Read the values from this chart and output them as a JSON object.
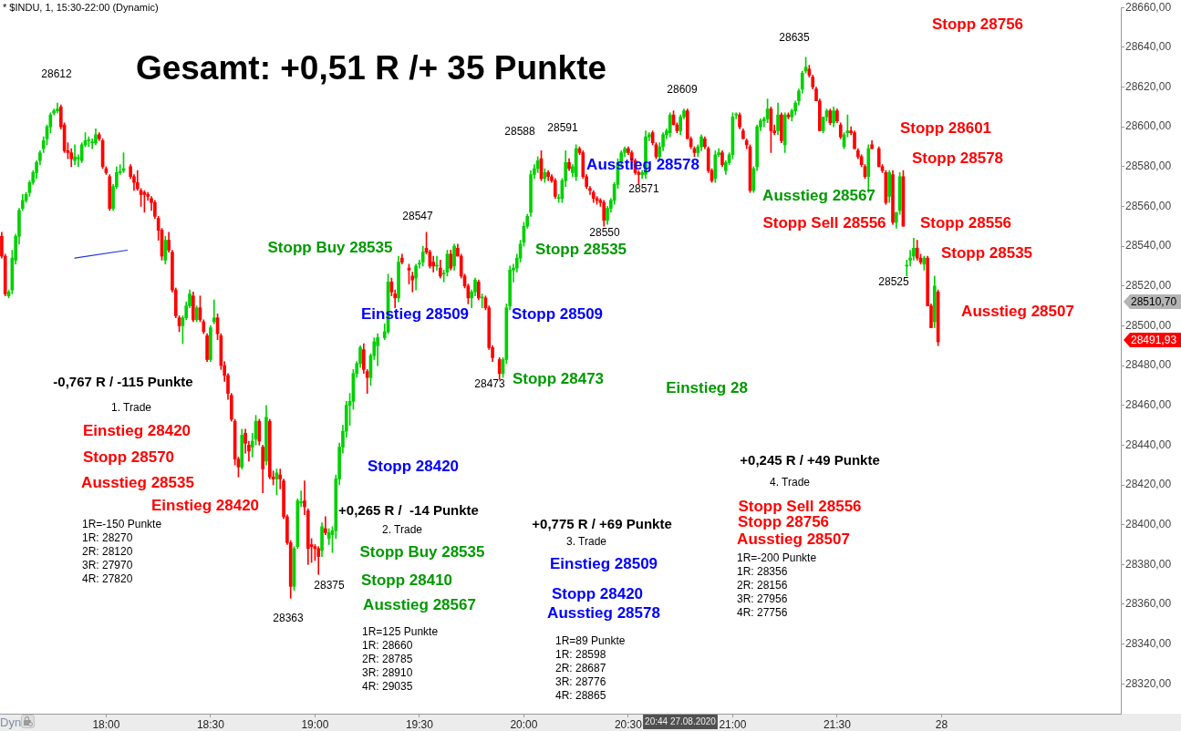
{
  "chart_data": {
    "type": "candlestick",
    "title": "* $INDU, 1, 15:30-22:00 (Dynamic)",
    "subtitle": "Gesamt: +0,51 R /+ 35 Punkte",
    "categories": [
      null,
      null,
      null,
      null,
      null,
      null,
      null,
      null,
      null,
      null,
      null,
      null,
      null,
      null,
      null,
      null,
      null,
      null,
      null,
      null,
      null,
      null,
      null,
      null,
      null,
      null,
      null,
      null,
      null,
      null,
      "18:00",
      null,
      null,
      null,
      null,
      null,
      null,
      null,
      null,
      null,
      null,
      null,
      null,
      null,
      null,
      null,
      null,
      null,
      null,
      null,
      null,
      null,
      null,
      null,
      null,
      null,
      null,
      null,
      null,
      null,
      "18:30",
      null,
      null,
      null,
      null,
      null,
      null,
      null,
      null,
      null,
      null,
      null,
      null,
      null,
      null,
      null,
      null,
      null,
      null,
      null,
      null,
      null,
      null,
      null,
      null,
      null,
      null,
      null,
      null,
      null,
      "19:00",
      null,
      null,
      null,
      null,
      null,
      null,
      null,
      null,
      null,
      null,
      null,
      null,
      null,
      null,
      null,
      null,
      null,
      null,
      null,
      null,
      null,
      null,
      null,
      null,
      null,
      null,
      null,
      null,
      null,
      "19:30",
      null,
      null,
      null,
      null,
      null,
      null,
      null,
      null,
      null,
      null,
      null,
      null,
      null,
      null,
      null,
      null,
      null,
      null,
      null,
      null,
      null,
      null,
      null,
      null,
      null,
      null,
      null,
      null,
      null,
      "20:00",
      null,
      null,
      null,
      null,
      null,
      null,
      null,
      null,
      null,
      null,
      null,
      null,
      null,
      null,
      null,
      null,
      null,
      null,
      null,
      null,
      null,
      null,
      null,
      null,
      null,
      null,
      null,
      null,
      null,
      "20:30",
      null,
      null,
      null,
      null,
      null,
      null,
      null,
      null,
      null,
      null,
      null,
      null,
      null,
      null,
      null,
      null,
      null,
      null,
      null,
      null,
      null,
      null,
      null,
      null,
      null,
      null,
      null,
      null,
      null,
      "21:00",
      null,
      null,
      null,
      null,
      null,
      null,
      null,
      null,
      null,
      null,
      null,
      null,
      null,
      null,
      null,
      null,
      null,
      null,
      null,
      null,
      null,
      null,
      null,
      null,
      null,
      null,
      null,
      null,
      null,
      "21:30",
      null,
      null,
      null,
      null,
      null,
      null,
      null,
      null,
      null,
      null,
      null,
      null,
      null,
      null,
      null,
      null,
      null,
      null,
      null,
      null,
      null,
      null,
      null,
      null,
      null,
      null,
      null,
      null,
      null,
      "28",
      null,
      null,
      null,
      null,
      null,
      null,
      null,
      null,
      null,
      null,
      null,
      null,
      null,
      null,
      null,
      null,
      null,
      null,
      null,
      null,
      null,
      null,
      null,
      null,
      null,
      null,
      null,
      null,
      null,
      null,
      null,
      null,
      null,
      null,
      null,
      null,
      null,
      null,
      null,
      null,
      null,
      null,
      null,
      null,
      null,
      null,
      null,
      null,
      null,
      null,
      null
    ],
    "series": [
      {
        "ohlc": [
          [
            28545,
            28547,
            28534,
            28535
          ],
          [
            28535,
            28536,
            28515,
            28516
          ],
          [
            28515,
            28518,
            28514,
            28517
          ],
          [
            28518,
            28538,
            28516,
            28534
          ],
          [
            28533,
            28546,
            28531,
            28545
          ],
          [
            28545,
            28559,
            28541,
            28558
          ],
          [
            28559,
            28566,
            28558,
            28563
          ],
          [
            28563,
            28567,
            28562,
            28566
          ],
          [
            28567,
            28573,
            28565,
            28572
          ],
          [
            28572,
            28578,
            28571,
            28577
          ],
          [
            28577,
            28583,
            28574,
            28582
          ],
          [
            28583,
            28588,
            28581,
            28587
          ],
          [
            28589,
            28595,
            28587,
            28593
          ],
          [
            28594,
            28601,
            28591,
            28600
          ],
          [
            28600,
            28607,
            28597,
            28606
          ],
          [
            28607,
            28609,
            28606,
            28608
          ],
          [
            28608,
            28612,
            28607,
            28609
          ],
          [
            28610,
            28611,
            28599,
            28600
          ],
          [
            28601,
            28602,
            28587,
            28588
          ],
          [
            28588,
            28592,
            28584,
            28587
          ],
          [
            28587,
            28589,
            28580,
            28584
          ],
          [
            28583,
            28591,
            28581,
            28585
          ],
          [
            28584,
            28586,
            28580,
            28584
          ],
          [
            28583,
            28592,
            28582,
            28591
          ],
          [
            28591,
            28597,
            28590,
            28593
          ],
          [
            28593,
            28595,
            28590,
            28593
          ],
          [
            28592,
            28594,
            28589,
            28592
          ],
          [
            28592,
            28599,
            28591,
            28596
          ],
          [
            28596,
            28597,
            28593,
            28594
          ],
          [
            28593,
            28594,
            28579,
            28580
          ],
          [
            28579,
            28580,
            28576,
            28577
          ],
          [
            28575,
            28576,
            28558,
            28559
          ],
          [
            28559,
            28571,
            28558,
            28570
          ],
          [
            28570,
            28580,
            28569,
            28577
          ],
          [
            28577,
            28581,
            28576,
            28577
          ],
          [
            28578,
            28587,
            28577,
            28579
          ],
          null,
          [
            28580,
            28581,
            28574,
            28575
          ],
          [
            28575,
            28576,
            28568,
            28572
          ],
          [
            28572,
            28578,
            28568,
            28569
          ],
          [
            28568,
            28569,
            28560,
            28566
          ],
          [
            28567,
            28568,
            28557,
            28566
          ],
          [
            28566,
            28567,
            28563,
            28565
          ],
          [
            28564,
            28565,
            28558,
            28562
          ],
          [
            28562,
            28563,
            28554,
            28555
          ],
          [
            28554,
            28555,
            28543,
            28548
          ],
          [
            28548,
            28549,
            28533,
            28535
          ],
          [
            28533,
            28545,
            28531,
            28543
          ],
          [
            28543,
            28547,
            28537,
            28538
          ],
          [
            28537,
            28538,
            28517,
            28518
          ],
          [
            28518,
            28519,
            28504,
            28505
          ],
          [
            28504,
            28505,
            28497,
            28500
          ],
          [
            28500,
            28505,
            28491,
            28504
          ],
          [
            28504,
            28512,
            28503,
            28510
          ],
          [
            28510,
            28518,
            28509,
            28516
          ],
          [
            28515,
            28517,
            28502,
            28503
          ],
          [
            28503,
            28510,
            28502,
            28509
          ],
          [
            28509,
            28515,
            28502,
            28503
          ],
          [
            28502,
            28503,
            28496,
            28497
          ],
          [
            28495,
            28496,
            28482,
            28483
          ],
          [
            28483,
            28500,
            28482,
            28499
          ],
          [
            28502,
            28513,
            28501,
            28504
          ],
          [
            28504,
            28506,
            28493,
            28496
          ],
          [
            28495,
            28496,
            28478,
            28480
          ],
          [
            28480,
            28482,
            28472,
            28475
          ],
          [
            28475,
            28476,
            28463,
            28466
          ],
          [
            28465,
            28466,
            28452,
            28453
          ],
          [
            28452,
            28453,
            28430,
            28433
          ],
          [
            28433,
            28434,
            28424,
            28429
          ],
          [
            28429,
            28448,
            28428,
            28445
          ],
          [
            28446,
            28448,
            28436,
            28441
          ],
          [
            28440,
            28442,
            28432,
            28437
          ],
          [
            28439,
            28446,
            28434,
            28442
          ],
          [
            28443,
            28455,
            28440,
            28452
          ],
          [
            28452,
            28453,
            28440,
            28442
          ],
          [
            28439,
            28440,
            28416,
            28428
          ],
          [
            28432,
            28460,
            28430,
            28454
          ],
          [
            28452,
            28453,
            28423,
            28424
          ],
          [
            28424,
            28427,
            28420,
            28423
          ],
          [
            28423,
            28428,
            28415,
            28426
          ],
          [
            28425,
            28428,
            28418,
            28423
          ],
          [
            28422,
            28423,
            28403,
            28404
          ],
          [
            28404,
            28405,
            28390,
            28391
          ],
          [
            28391,
            28392,
            28363,
            28369
          ],
          [
            28369,
            28389,
            28367,
            28388
          ],
          [
            28389,
            28413,
            28388,
            28412
          ],
          [
            28411,
            28417,
            28409,
            28411
          ],
          [
            28412,
            28422,
            28405,
            28409
          ],
          [
            28407,
            28408,
            28380,
            28388
          ],
          [
            28390,
            28393,
            28381,
            28389
          ],
          [
            28389,
            28390,
            28382,
            28388
          ],
          [
            28388,
            28389,
            28375,
            28384
          ],
          [
            28387,
            28401,
            28384,
            28399
          ],
          [
            28398,
            28404,
            28395,
            28396
          ],
          [
            28393,
            28398,
            28390,
            28396
          ],
          [
            28395,
            28399,
            28386,
            28397
          ],
          [
            28397,
            28425,
            28393,
            28423
          ],
          [
            28423,
            28441,
            28420,
            28439
          ],
          [
            28439,
            28450,
            28436,
            28447
          ],
          [
            28447,
            28462,
            28444,
            28460
          ],
          [
            28460,
            28466,
            28450,
            28462
          ],
          [
            28462,
            28478,
            28458,
            28476
          ],
          [
            28476,
            28482,
            28474,
            28481
          ],
          [
            28481,
            28490,
            28479,
            28489
          ],
          [
            28488,
            28491,
            28476,
            28478
          ],
          [
            28477,
            28478,
            28466,
            28474
          ],
          [
            28474,
            28486,
            28470,
            28485
          ],
          [
            28485,
            28494,
            28483,
            28492
          ],
          [
            28490,
            28496,
            28480,
            28494
          ],
          null,
          [
            28494,
            28501,
            28493,
            28497
          ],
          [
            28497,
            28526,
            28496,
            28522
          ],
          [
            28522,
            28524,
            28515,
            28517
          ],
          [
            28516,
            28518,
            28509,
            28514
          ],
          [
            28514,
            28535,
            28512,
            28532
          ],
          [
            28534,
            28536,
            28531,
            28532
          ],
          null,
          [
            28529,
            28531,
            28521,
            28528
          ],
          [
            28525,
            28527,
            28517,
            28523
          ],
          [
            28524,
            28531,
            28518,
            28530
          ],
          [
            28531,
            28533,
            28529,
            28531
          ],
          [
            28532,
            28540,
            28530,
            28537
          ],
          [
            28539,
            28547,
            28536,
            28537
          ],
          [
            28537,
            28538,
            28529,
            28530
          ],
          [
            28532,
            28535,
            28527,
            28530
          ],
          [
            28530,
            28535,
            28528,
            28530
          ],
          [
            28529,
            28533,
            28524,
            28525
          ],
          [
            28526,
            28528,
            28522,
            28526
          ],
          [
            28527,
            28538,
            28525,
            28536
          ],
          [
            28536,
            28538,
            28528,
            28529
          ],
          [
            28530,
            28541,
            28528,
            28540
          ],
          [
            28539,
            28541,
            28535,
            28535
          ],
          [
            28535,
            28536,
            28524,
            28525
          ],
          [
            28525,
            28526,
            28519,
            28520
          ],
          [
            28520,
            28521,
            28511,
            28514
          ],
          [
            28514,
            28518,
            28509,
            28517
          ],
          [
            28517,
            28524,
            28515,
            28523
          ],
          [
            28522,
            28523,
            28513,
            28514
          ],
          [
            28514,
            28516,
            28509,
            28514
          ],
          [
            28514,
            28515,
            28508,
            28509
          ],
          [
            28509,
            28510,
            28488,
            28489
          ],
          [
            28489,
            28490,
            28482,
            28484
          ],
          null,
          [
            28483,
            28484,
            28473,
            28476
          ],
          [
            28476,
            28484,
            28474,
            28483
          ],
          [
            28483,
            28511,
            28481,
            28509
          ],
          [
            28510,
            28530,
            28508,
            28528
          ],
          [
            28528,
            28531,
            28522,
            28529
          ],
          [
            28529,
            28536,
            28527,
            28534
          ],
          [
            28534,
            28543,
            28532,
            28541
          ],
          [
            28542,
            28552,
            28540,
            28550
          ],
          [
            28550,
            28556,
            28549,
            28555
          ],
          [
            28557,
            28578,
            28555,
            28576
          ],
          [
            28576,
            28581,
            28574,
            28579
          ],
          [
            28579,
            28585,
            28577,
            28583
          ],
          [
            28584,
            28588,
            28573,
            28574
          ],
          [
            28574,
            28579,
            28572,
            28577
          ],
          [
            28577,
            28578,
            28573,
            28575
          ],
          [
            28575,
            28576,
            28572,
            28573
          ],
          [
            28573,
            28574,
            28564,
            28565
          ],
          [
            28564,
            28566,
            28562,
            28564
          ],
          [
            28564,
            28574,
            28562,
            28573
          ],
          [
            28573,
            28588,
            28570,
            28582
          ],
          [
            28582,
            28584,
            28578,
            28579
          ],
          [
            28577,
            28581,
            28575,
            28580
          ],
          [
            28575,
            28591,
            28573,
            28589
          ],
          [
            28589,
            28590,
            28586,
            28587
          ],
          [
            28587,
            28588,
            28574,
            28575
          ],
          [
            28575,
            28576,
            28569,
            28570
          ],
          [
            28569,
            28570,
            28566,
            28568
          ],
          [
            28567,
            28568,
            28562,
            28564
          ],
          [
            28564,
            28565,
            28561,
            28563
          ],
          [
            28563,
            28564,
            28560,
            28562
          ],
          [
            28562,
            28563,
            28550,
            28553
          ],
          [
            28553,
            28560,
            28551,
            28559
          ],
          [
            28559,
            28564,
            28557,
            28563
          ],
          [
            28563,
            28572,
            28561,
            28571
          ],
          [
            28571,
            28584,
            28569,
            28582
          ],
          [
            28582,
            28588,
            28580,
            28587
          ],
          [
            28587,
            28590,
            28585,
            28589
          ],
          [
            28589,
            28590,
            28586,
            28587
          ],
          [
            28587,
            28588,
            28582,
            28583
          ],
          [
            28583,
            28584,
            28576,
            28577
          ],
          [
            28577,
            28578,
            28571,
            28576
          ],
          [
            28576,
            28578,
            28574,
            28577
          ],
          [
            28576,
            28598,
            28574,
            28595
          ],
          [
            28595,
            28597,
            28593,
            28596
          ],
          [
            28597,
            28598,
            28591,
            28592
          ],
          [
            28591,
            28592,
            28584,
            28585
          ],
          [
            28585,
            28592,
            28583,
            28590
          ],
          [
            28590,
            28597,
            28588,
            28596
          ],
          [
            28596,
            28599,
            28594,
            28598
          ],
          [
            28597,
            28607,
            28595,
            28606
          ],
          [
            28606,
            28608,
            28601,
            28601
          ],
          [
            28601,
            28602,
            28597,
            28598
          ],
          [
            28598,
            28606,
            28596,
            28605
          ],
          [
            28605,
            28609,
            28604,
            28608
          ],
          [
            28608,
            28609,
            28594,
            28594
          ],
          [
            28594,
            28595,
            28589,
            28590
          ],
          [
            28589,
            28590,
            28585,
            28587
          ],
          [
            28587,
            28591,
            28585,
            28590
          ],
          [
            28590,
            28596,
            28588,
            28595
          ],
          [
            28594,
            28595,
            28589,
            28590
          ],
          [
            28589,
            28590,
            28577,
            28578
          ],
          [
            28578,
            28579,
            28572,
            28573
          ],
          [
            28574,
            28588,
            28572,
            28586
          ],
          [
            28586,
            28589,
            28585,
            28587
          ],
          [
            28587,
            28588,
            28580,
            28581
          ],
          [
            28578,
            28583,
            28576,
            28582
          ],
          [
            28582,
            28587,
            28581,
            28586
          ],
          [
            28586,
            28607,
            28584,
            28605
          ],
          [
            28606,
            28607,
            28604,
            28606
          ],
          [
            28606,
            28607,
            28599,
            28600
          ],
          [
            28598,
            28599,
            28594,
            28594
          ],
          [
            28593,
            28594,
            28589,
            28591
          ],
          [
            28590,
            28591,
            28567,
            28568
          ],
          [
            28568,
            28580,
            28567,
            28579
          ],
          [
            28580,
            28601,
            28578,
            28600
          ],
          [
            28600,
            28604,
            28598,
            28603
          ],
          [
            28603,
            28605,
            28600,
            28604
          ],
          [
            28604,
            28614,
            28602,
            28609
          ],
          [
            28609,
            28610,
            28587,
            28598
          ],
          [
            28598,
            28601,
            28596,
            28597
          ],
          [
            28598,
            28612,
            28596,
            28606
          ],
          [
            28606,
            28607,
            28592,
            28593
          ],
          [
            28591,
            28607,
            28587,
            28606
          ],
          [
            28606,
            28607,
            28604,
            28605
          ],
          [
            28605,
            28609,
            28603,
            28608
          ],
          [
            28608,
            28613,
            28606,
            28612
          ],
          [
            28613,
            28619,
            28611,
            28618
          ],
          [
            28619,
            28628,
            28617,
            28627
          ],
          [
            28628,
            28635,
            28627,
            28630
          ],
          [
            28629,
            28631,
            28625,
            28626
          ],
          [
            28625,
            28626,
            28619,
            28620
          ],
          [
            28619,
            28620,
            28613,
            28613
          ],
          [
            28613,
            28614,
            28598,
            28598
          ],
          [
            28598,
            28605,
            28597,
            28605
          ],
          [
            28605,
            28609,
            28603,
            28608
          ],
          [
            28608,
            28609,
            28601,
            28602
          ],
          [
            28602,
            28610,
            28600,
            28608
          ],
          [
            28608,
            28609,
            28602,
            28603
          ],
          [
            28601,
            28602,
            28594,
            28595
          ],
          [
            28590,
            28597,
            28589,
            28596
          ],
          [
            28597,
            28606,
            28595,
            28598
          ],
          [
            28598,
            28600,
            28596,
            28597
          ],
          [
            28597,
            28598,
            28589,
            28589
          ],
          [
            28588,
            28589,
            28584,
            28585
          ],
          [
            28585,
            28586,
            28580,
            28581
          ],
          [
            28580,
            28581,
            28574,
            28575
          ],
          [
            28575,
            28591,
            28567,
            28589
          ],
          [
            28591,
            28593,
            28589,
            28589
          ],
          null,
          [
            28589,
            28590,
            28580,
            28580
          ],
          [
            28580,
            28581,
            28577,
            28578
          ],
          [
            28577,
            28578,
            28561,
            28562
          ],
          [
            28565,
            28578,
            28562,
            28577
          ],
          [
            28576,
            28578,
            28551,
            28552
          ],
          [
            28552,
            28557,
            28549,
            28557
          ],
          [
            28558,
            28577,
            28556,
            28575
          ],
          [
            28575,
            28578,
            28550,
            28550
          ],
          [
            28530,
            28533,
            28525,
            28530
          ],
          [
            28533,
            28538,
            28530,
            28534
          ],
          [
            28535,
            28544,
            28533,
            28539
          ],
          [
            28539,
            28543,
            28533,
            28534
          ],
          [
            28534,
            28536,
            28531,
            28532
          ],
          [
            28531,
            28535,
            28528,
            28534
          ],
          [
            28534,
            28535,
            28510,
            28510
          ],
          [
            28510,
            28511,
            28499,
            28499
          ],
          [
            28502,
            28525,
            28499,
            28520
          ],
          [
            28517,
            28518,
            28490,
            28491.93
          ],
          null,
          null,
          null,
          null,
          null,
          null,
          null,
          null,
          null,
          null,
          null,
          null,
          null,
          null,
          null,
          null,
          null,
          null,
          null,
          null,
          null,
          null,
          null,
          null,
          null,
          null,
          null,
          null,
          null,
          null,
          null,
          null,
          null,
          null,
          null,
          null,
          null,
          null,
          null,
          null,
          null,
          null,
          null,
          null,
          null,
          null,
          null,
          null,
          null,
          null,
          null,
          null
        ]
      },
      {
        "type": "line",
        "color": "#2233dd",
        "values": [
          null,
          null,
          null,
          null,
          null,
          null,
          null,
          null,
          null,
          null,
          null,
          null,
          null,
          null,
          null,
          null,
          null,
          null,
          null,
          null,
          null,
          28534,
          null,
          null,
          null,
          null,
          null,
          null,
          null,
          null,
          null,
          null,
          null,
          null,
          null,
          null,
          28538,
          null,
          null,
          null,
          null,
          null,
          null,
          null,
          null,
          null,
          null,
          null,
          null,
          null,
          null,
          null,
          null,
          null,
          null,
          null,
          null,
          null,
          null,
          null,
          null,
          null,
          null,
          null,
          null,
          null,
          null,
          null,
          null,
          null,
          null,
          null,
          null,
          null,
          null,
          null,
          null,
          null,
          null,
          null,
          null,
          null,
          null,
          null,
          null,
          null,
          null,
          null,
          null,
          null,
          null,
          null,
          null,
          null,
          null,
          null,
          null,
          null,
          null,
          null,
          null,
          null,
          null,
          null,
          null,
          null,
          null,
          null,
          null,
          null,
          null,
          null,
          null,
          null,
          null,
          null,
          null,
          null,
          null,
          null,
          null,
          null,
          null,
          null,
          null,
          null,
          null,
          null,
          null,
          null,
          null,
          null,
          null,
          null,
          null,
          null,
          null,
          null,
          null,
          null,
          null,
          null,
          null,
          null,
          null,
          null,
          null,
          null,
          null,
          null,
          null,
          null,
          null,
          null,
          null,
          null,
          null,
          null,
          null,
          null,
          null,
          null,
          null,
          null,
          null,
          null,
          null,
          null,
          null,
          null,
          null,
          null,
          null,
          null,
          null,
          null,
          null,
          null,
          null,
          null,
          null,
          null,
          null,
          null,
          null,
          null,
          null,
          null,
          null,
          null,
          null,
          null,
          null,
          null,
          null,
          null,
          null,
          null,
          null,
          null,
          null,
          null,
          null,
          null,
          null,
          null,
          null,
          null,
          null,
          null,
          null,
          null,
          null,
          null,
          null,
          null,
          null,
          null,
          null,
          null,
          null,
          null,
          null,
          null,
          null,
          null,
          null,
          null,
          null,
          null,
          null,
          null,
          null,
          null,
          null,
          null,
          null,
          null,
          null,
          null,
          null,
          null,
          null,
          null,
          null,
          null,
          null,
          null,
          null,
          null,
          null,
          null,
          null,
          null,
          null,
          null,
          null,
          null,
          null,
          null,
          null,
          null,
          null,
          null,
          null,
          null,
          null,
          null,
          null,
          null,
          null,
          null,
          null,
          null,
          null,
          null,
          null,
          null,
          null,
          null,
          null,
          null,
          null,
          null,
          null,
          null,
          null,
          null,
          null,
          null,
          null,
          null,
          null,
          null,
          null,
          null,
          null,
          null,
          null,
          null,
          null,
          null,
          null,
          null,
          null,
          null,
          null,
          null,
          null,
          null,
          null,
          null,
          null,
          null,
          null,
          null,
          null,
          null,
          null,
          null,
          null,
          null
        ]
      }
    ],
    "ylim": [
      28305,
      28660
    ],
    "yticks": [
      {
        "value": 28320,
        "label": "28320,00"
      },
      {
        "value": 28340,
        "label": "28340,00"
      },
      {
        "value": 28360,
        "label": "28360,00"
      },
      {
        "value": 28380,
        "label": "28380,00"
      },
      {
        "value": 28400,
        "label": "28400,00"
      },
      {
        "value": 28420,
        "label": "28420,00"
      },
      {
        "value": 28440,
        "label": "28440,00"
      },
      {
        "value": 28460,
        "label": "28460,00"
      },
      {
        "value": 28480,
        "label": "28480,00"
      },
      {
        "value": 28500,
        "label": "28500,00"
      },
      {
        "value": 28520,
        "label": "28520,00"
      },
      {
        "value": 28540,
        "label": "28540,00"
      },
      {
        "value": 28560,
        "label": "28560,00"
      },
      {
        "value": 28580,
        "label": "28580,00"
      },
      {
        "value": 28600,
        "label": "28600,00"
      },
      {
        "value": 28620,
        "label": "28620,00"
      },
      {
        "value": 28640,
        "label": "28640,00"
      },
      {
        "value": 28660,
        "label": "28660,00"
      }
    ],
    "annotations": [
      "28612",
      "28363",
      "28375",
      "28547",
      "28473",
      "28588",
      "28591",
      "28550",
      "28571",
      "28609",
      "28635",
      "28525",
      "Stopp 28756",
      "Stopp 28601",
      "Stopp 28578",
      "Stopp 28556",
      "Stopp 28535",
      "Ausstieg 28507",
      "Ausstieg 28567",
      "Stopp Sell 28556",
      "Ausstieg 28578",
      "Stopp Buy 28535",
      "Stopp 28535",
      "Einstieg 28509",
      "Stopp 28509",
      "Stopp 28473",
      "Einstieg 28",
      "Einstieg 28420",
      "Stopp 28420",
      "-0,767 R / -115 Punkte",
      "1. Trade",
      "Einstieg 28420",
      "Stopp 28570",
      "Ausstieg 28535",
      "1R=-150 Punkte\n1R: 28270\n2R: 28120\n3R: 27970\n4R: 27820",
      "+0,265 R /  -14 Punkte",
      "2. Trade",
      "Stopp Buy 28535",
      "Stopp 28410",
      "Ausstieg 28567",
      "1R=125 Punkte\n1R: 28660\n2R: 28785\n3R: 28910\n4R: 29035",
      "+0,775 R / +69 Punkte",
      "3. Trade",
      "Einstieg 28509",
      "Stopp 28420",
      "Ausstieg 28578",
      "1R=89 Punkte\n1R: 28598\n2R: 28687\n3R: 28776\n4R: 28865",
      "+0,245 R / +49 Punkte",
      "4. Trade",
      "Stopp Sell 28556",
      "Stopp 28756",
      "Ausstieg 28507",
      "1R=-200 Punkte\n1R: 28356\n2R: 28156\n3R: 27956\n4R: 27756",
      "20:44 27.08.2020",
      "28510,70",
      "28491,93",
      "Dyn"
    ]
  }
}
